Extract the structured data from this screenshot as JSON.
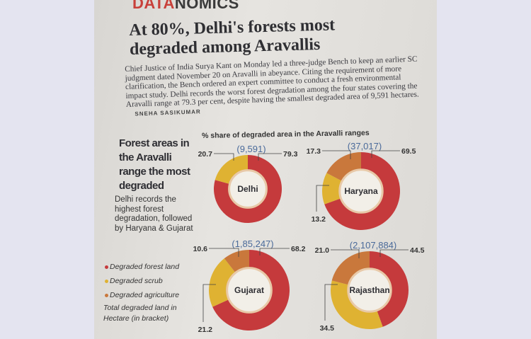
{
  "section": {
    "brand_part1": "DATA",
    "brand_part2": "NOMICS"
  },
  "headline": "At 80%, Delhi's forests most degraded among Aravallis",
  "body": "Chief Justice of India Surya Kant on Monday led a three-judge Bench to keep an earlier SC judgment dated November 20 on Aravalli in abeyance. Citing the requirement of more clarification, the Bench ordered an expert committee to conduct a fresh environmental impact study. Delhi records the worst forest degradation among the four states covering the Aravalli range at 79.3 per cent, despite having the smallest degraded area of 9,591 hectares.",
  "byline": "SNEHA SASIKUMAR",
  "side_title": "Forest areas in the Aravalli range the most degraded",
  "side_desc": "Delhi records the highest forest degradation, followed by Haryana & Gujarat",
  "legend": {
    "items": [
      "Degraded forest land",
      "Degraded scrub",
      "Degraded agriculture"
    ],
    "note": "Total degraded land in Hectare (in bracket)"
  },
  "colors": {
    "forest": "#c53a3c",
    "scrub": "#dfb232",
    "agriculture": "#c9783c",
    "total_label": "#4a6a9a"
  },
  "chart_data": {
    "type": "pie",
    "title": "% share of degraded area in the Aravalli ranges",
    "series_names": [
      "Degraded forest land",
      "Degraded scrub",
      "Degraded agriculture"
    ],
    "charts": [
      {
        "state": "Delhi",
        "total": "(9,591)",
        "values": [
          79.3,
          20.7,
          null
        ],
        "labels": [
          "79.3",
          "20.7",
          ""
        ]
      },
      {
        "state": "Haryana",
        "total": "(37,017)",
        "values": [
          69.5,
          13.2,
          17.3
        ],
        "labels": [
          "69.5",
          "13.2",
          "17.3"
        ]
      },
      {
        "state": "Gujarat",
        "total": "(1,85,247)",
        "values": [
          68.2,
          21.2,
          10.6
        ],
        "labels": [
          "68.2",
          "21.2",
          "10.6"
        ]
      },
      {
        "state": "Rajasthan",
        "total": "(2,107,884)",
        "values": [
          44.5,
          34.5,
          21.0
        ],
        "labels": [
          "44.5",
          "34.5",
          "21.0"
        ]
      }
    ]
  }
}
